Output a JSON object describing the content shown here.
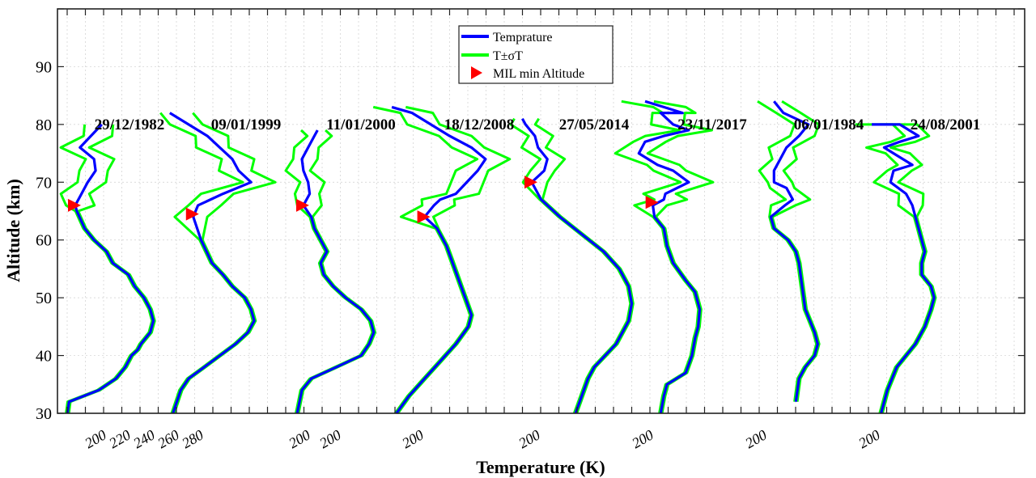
{
  "chart_data": {
    "type": "line",
    "xlabel": "Temperature (K)",
    "ylabel": "Altitude (km)",
    "ylim": [
      30,
      100
    ],
    "y_ticks": [
      30,
      40,
      50,
      60,
      70,
      80,
      90
    ],
    "x_tick_labels_first_panel": [
      "200",
      "220",
      "240",
      "260",
      "280"
    ],
    "x_tick_label_other_panels": "200",
    "grid": true,
    "legend_position": "top-center",
    "legend": [
      {
        "label": "Temprature",
        "marker": "line",
        "color": "#0000ff"
      },
      {
        "label": "T±σT",
        "marker": "line",
        "color": "#00ff00"
      },
      {
        "label": "MIL min Altitude",
        "marker": "triangle-right",
        "color": "#ff0000"
      }
    ],
    "panels": [
      {
        "date": "29/12/1982",
        "xlim": [
          190,
          290
        ],
        "temperature": [
          [
            195,
            30
          ],
          [
            196,
            32
          ],
          [
            215,
            34
          ],
          [
            226,
            36
          ],
          [
            232,
            38
          ],
          [
            236,
            40
          ],
          [
            240,
            41
          ],
          [
            242,
            42
          ],
          [
            248,
            44
          ],
          [
            250,
            46
          ],
          [
            248,
            48
          ],
          [
            244,
            50
          ],
          [
            238,
            52
          ],
          [
            234,
            54
          ],
          [
            224,
            56
          ],
          [
            220,
            58
          ],
          [
            212,
            60
          ],
          [
            206,
            62
          ],
          [
            201,
            65
          ],
          [
            200,
            66
          ],
          [
            204,
            68
          ],
          [
            208,
            70
          ],
          [
            213,
            72
          ],
          [
            212,
            74
          ],
          [
            203,
            76
          ],
          [
            210,
            78
          ],
          [
            217,
            80
          ]
        ],
        "sigma": 3.5,
        "noisy_from": 66,
        "mil_altitude": 66
      },
      {
        "date": "09/01/1999",
        "xlim": [
          190,
          290
        ],
        "temperature": [
          [
            190,
            30
          ],
          [
            195,
            34
          ],
          [
            200,
            36
          ],
          [
            210,
            38
          ],
          [
            220,
            40
          ],
          [
            230,
            42
          ],
          [
            238,
            44
          ],
          [
            242,
            46
          ],
          [
            240,
            48
          ],
          [
            236,
            50
          ],
          [
            228,
            52
          ],
          [
            222,
            54
          ],
          [
            215,
            56
          ],
          [
            208,
            60
          ],
          [
            203,
            64
          ],
          [
            206,
            66
          ],
          [
            222,
            68
          ],
          [
            240,
            70
          ],
          [
            232,
            72
          ],
          [
            228,
            74
          ],
          [
            220,
            76
          ],
          [
            212,
            78
          ],
          [
            200,
            80
          ],
          [
            188,
            82
          ]
        ],
        "sigma": 4,
        "noisy_from": 64,
        "mil_altitude": 64.5
      },
      {
        "date": "11/01/2000",
        "xlim": [
          190,
          290
        ],
        "temperature": [
          [
            197,
            30
          ],
          [
            200,
            34
          ],
          [
            206,
            36
          ],
          [
            222,
            38
          ],
          [
            238,
            40
          ],
          [
            243,
            42
          ],
          [
            246,
            44
          ],
          [
            244,
            46
          ],
          [
            238,
            48
          ],
          [
            228,
            50
          ],
          [
            220,
            52
          ],
          [
            214,
            54
          ],
          [
            212,
            56
          ],
          [
            216,
            58
          ],
          [
            212,
            60
          ],
          [
            208,
            62
          ],
          [
            206,
            64
          ],
          [
            201,
            66
          ],
          [
            205,
            68
          ],
          [
            204,
            70
          ],
          [
            201,
            72
          ],
          [
            200,
            74
          ],
          [
            204,
            76
          ],
          [
            208,
            78
          ],
          [
            210,
            79
          ]
        ],
        "sigma": 3,
        "noisy_from": 66,
        "mil_altitude": 66
      },
      {
        "date": "18/12/2008",
        "xlim": [
          190,
          290
        ],
        "temperature": [
          [
            188,
            30
          ],
          [
            196,
            33
          ],
          [
            206,
            36
          ],
          [
            216,
            39
          ],
          [
            226,
            42
          ],
          [
            234,
            45
          ],
          [
            236,
            47
          ],
          [
            232,
            50
          ],
          [
            228,
            53
          ],
          [
            224,
            56
          ],
          [
            220,
            59
          ],
          [
            214,
            62
          ],
          [
            206,
            64
          ],
          [
            212,
            66
          ],
          [
            216,
            67
          ],
          [
            226,
            68
          ],
          [
            240,
            72
          ],
          [
            245,
            74
          ],
          [
            236,
            76
          ],
          [
            222,
            78
          ],
          [
            210,
            80
          ],
          [
            198,
            82
          ],
          [
            185,
            83
          ]
        ],
        "sigma": 4,
        "noisy_from": 64,
        "mil_altitude": 64
      },
      {
        "date": "27/05/2014",
        "xlim": [
          190,
          290
        ],
        "temperature": [
          [
            228,
            30
          ],
          [
            232,
            33
          ],
          [
            236,
            36
          ],
          [
            240,
            38
          ],
          [
            254,
            42
          ],
          [
            262,
            46
          ],
          [
            264,
            49
          ],
          [
            262,
            52
          ],
          [
            256,
            55
          ],
          [
            246,
            58
          ],
          [
            232,
            61
          ],
          [
            218,
            64
          ],
          [
            206,
            67
          ],
          [
            200,
            70
          ],
          [
            208,
            72
          ],
          [
            210,
            74
          ],
          [
            204,
            76
          ],
          [
            202,
            78
          ],
          [
            196,
            80
          ],
          [
            194,
            81
          ]
        ],
        "sigma": 3,
        "noisy_from": 70,
        "mil_altitude": 70
      },
      {
        "date": "23/11/2017",
        "xlim": [
          190,
          290
        ],
        "temperature": [
          [
            210,
            30
          ],
          [
            212,
            33
          ],
          [
            214,
            35
          ],
          [
            226,
            37
          ],
          [
            230,
            40
          ],
          [
            232,
            43
          ],
          [
            234,
            45
          ],
          [
            235,
            48
          ],
          [
            232,
            51
          ],
          [
            226,
            53
          ],
          [
            218,
            56
          ],
          [
            214,
            59
          ],
          [
            212,
            62
          ],
          [
            206,
            64
          ],
          [
            205,
            66
          ],
          [
            212,
            67
          ],
          [
            213,
            68
          ],
          [
            228,
            70
          ],
          [
            218,
            72
          ],
          [
            208,
            73
          ],
          [
            196,
            75
          ],
          [
            200,
            77
          ],
          [
            212,
            78
          ],
          [
            228,
            79
          ],
          [
            218,
            80
          ],
          [
            210,
            82
          ],
          [
            224,
            82
          ],
          [
            212,
            83
          ],
          [
            200,
            84
          ]
        ],
        "sigma": 4,
        "noisy_from": 66,
        "mil_altitude": 66.5
      },
      {
        "date": "06/01/1984",
        "xlim": [
          190,
          290
        ],
        "temperature": [
          [
            224,
            32
          ],
          [
            226,
            36
          ],
          [
            230,
            38
          ],
          [
            236,
            40
          ],
          [
            238,
            42
          ],
          [
            236,
            44
          ],
          [
            233,
            46
          ],
          [
            230,
            48
          ],
          [
            228,
            52
          ],
          [
            226,
            56
          ],
          [
            224,
            58
          ],
          [
            219,
            60
          ],
          [
            210,
            62
          ],
          [
            208,
            64
          ],
          [
            217,
            66
          ],
          [
            222,
            67
          ],
          [
            218,
            69
          ],
          [
            210,
            70
          ],
          [
            210,
            72
          ],
          [
            214,
            74
          ],
          [
            218,
            76
          ],
          [
            226,
            78
          ],
          [
            232,
            80
          ],
          [
            216,
            82
          ],
          [
            210,
            84
          ]
        ],
        "sigma": 3,
        "noisy_from": 66,
        "mil_altitude": null
      },
      {
        "date": "24/08/2001",
        "xlim": [
          190,
          290
        ],
        "temperature": [
          [
            206,
            30
          ],
          [
            210,
            34
          ],
          [
            216,
            38
          ],
          [
            228,
            42
          ],
          [
            234,
            45
          ],
          [
            238,
            48
          ],
          [
            240,
            50
          ],
          [
            238,
            52
          ],
          [
            232,
            54
          ],
          [
            232,
            56
          ],
          [
            234,
            58
          ],
          [
            232,
            60
          ],
          [
            230,
            62
          ],
          [
            228,
            64
          ],
          [
            226,
            66
          ],
          [
            222,
            68
          ],
          [
            212,
            70
          ],
          [
            214,
            72
          ],
          [
            226,
            73
          ],
          [
            214,
            75
          ],
          [
            208,
            76
          ],
          [
            218,
            77
          ],
          [
            230,
            78
          ],
          [
            218,
            80
          ],
          [
            200,
            80
          ]
        ],
        "sigma": 3,
        "noisy_from": 66,
        "mil_altitude": null
      }
    ]
  }
}
